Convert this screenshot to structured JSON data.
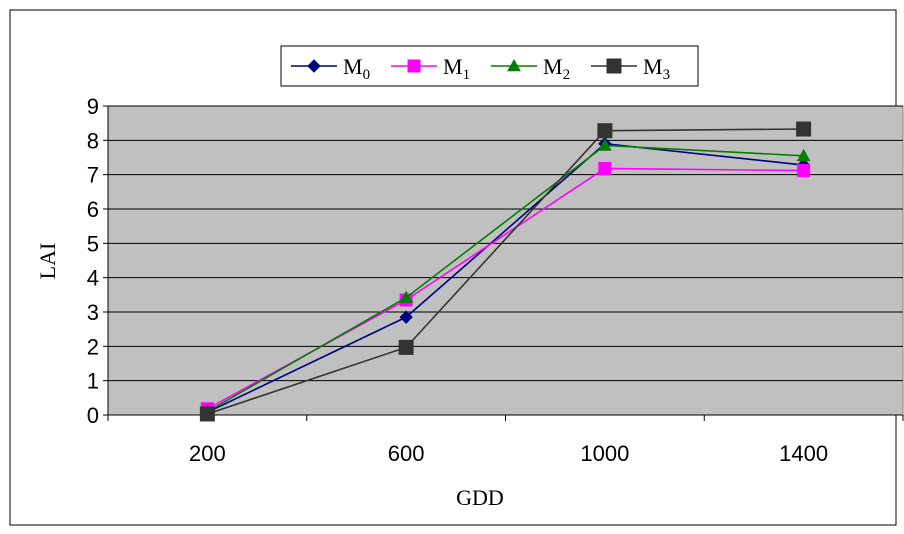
{
  "chart_data": {
    "type": "line",
    "xlabel": "GDD",
    "ylabel": "LAI",
    "categories": [
      "200",
      "600",
      "1000",
      "1400"
    ],
    "ylim": [
      0,
      9
    ],
    "yticks": [
      0,
      1,
      2,
      3,
      4,
      5,
      6,
      7,
      8,
      9
    ],
    "grid": true,
    "legend_position": "top-center",
    "plot_background": "#c0c0c0",
    "series": [
      {
        "name": "M0",
        "name_base": "M",
        "name_sub": "0",
        "color": "#000080",
        "marker": "diamond",
        "values": [
          0.08,
          2.85,
          7.9,
          7.28
        ]
      },
      {
        "name": "M1",
        "name_base": "M",
        "name_sub": "1",
        "color": "#ff00ff",
        "marker": "square",
        "values": [
          0.18,
          3.35,
          7.18,
          7.12
        ]
      },
      {
        "name": "M2",
        "name_base": "M",
        "name_sub": "2",
        "color": "#008000",
        "marker": "triangle",
        "values": [
          0.1,
          3.42,
          7.85,
          7.55
        ]
      },
      {
        "name": "M3",
        "name_base": "M",
        "name_sub": "3",
        "color": "#333333",
        "marker": "square",
        "values": [
          0.03,
          1.97,
          8.28,
          8.33
        ]
      }
    ]
  }
}
